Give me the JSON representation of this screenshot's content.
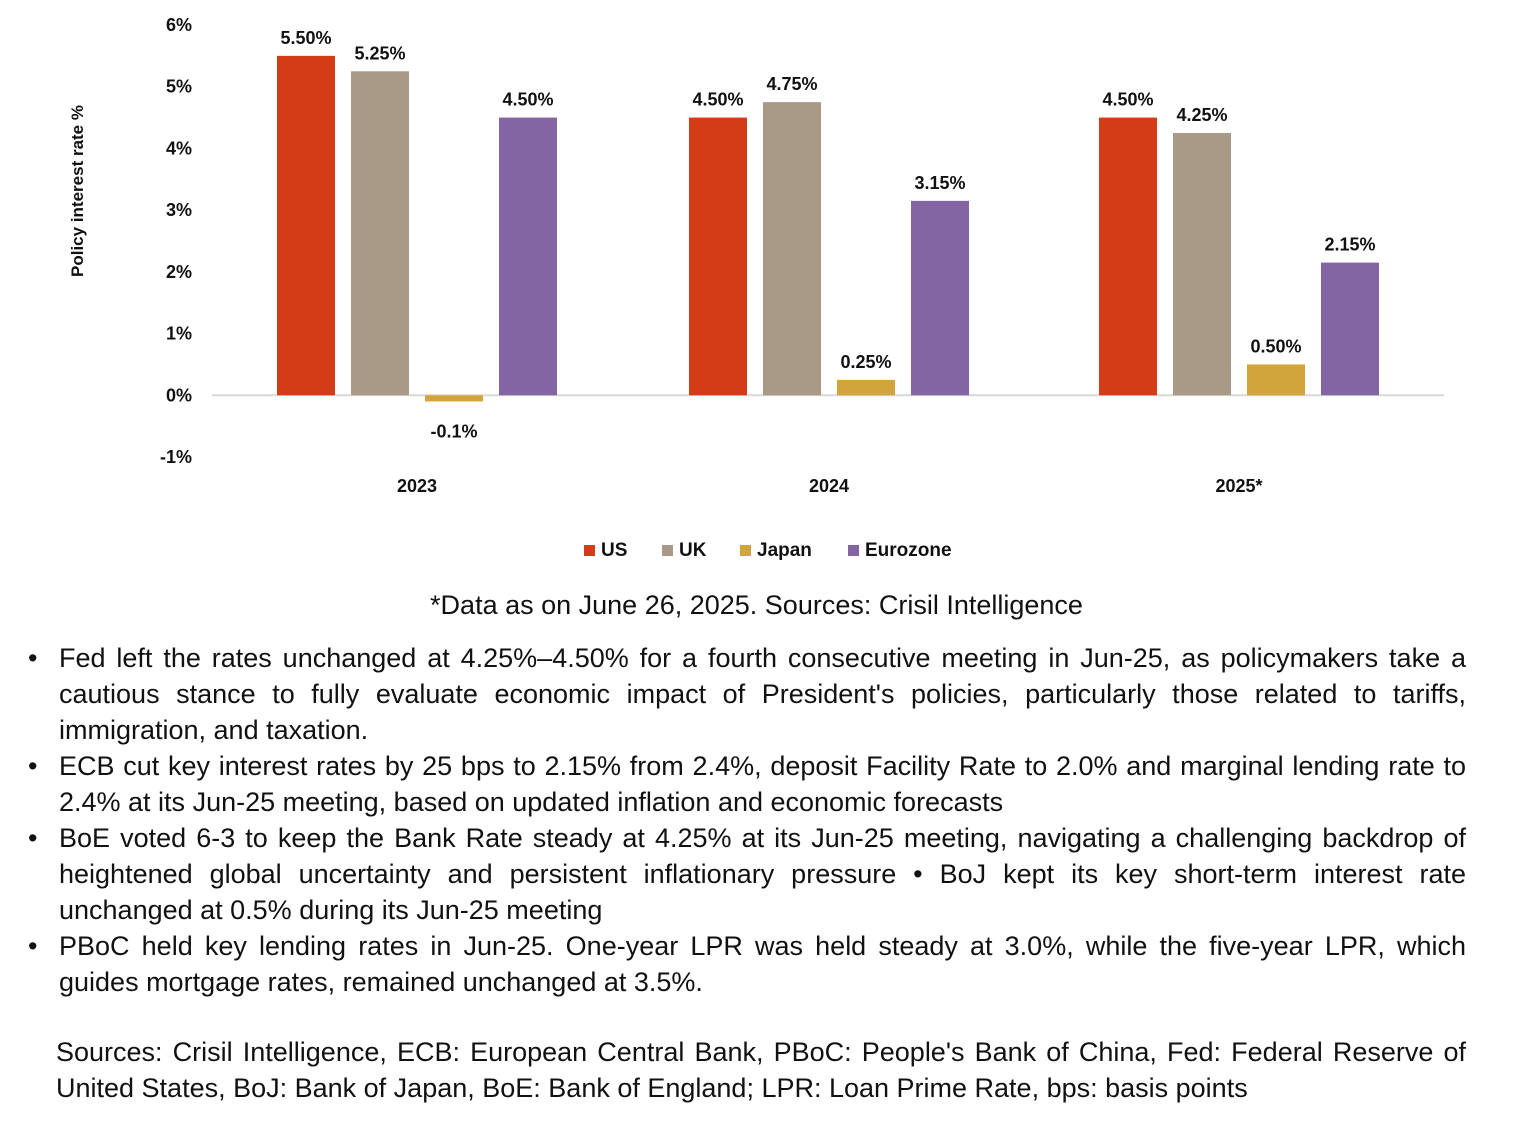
{
  "chart_data": {
    "type": "bar",
    "categories": [
      "2023",
      "2024",
      "2025*"
    ],
    "series": [
      {
        "name": "US",
        "color": "#D43B17",
        "values": [
          5.5,
          4.5,
          4.5
        ],
        "labels": [
          "5.50%",
          "4.50%",
          "4.50%"
        ]
      },
      {
        "name": "UK",
        "color": "#A89A86",
        "values": [
          5.25,
          4.75,
          4.25
        ],
        "labels": [
          "5.25%",
          "4.75%",
          "4.25%"
        ]
      },
      {
        "name": "Japan",
        "color": "#D2A43C",
        "values": [
          -0.1,
          0.25,
          0.5
        ],
        "labels": [
          "-0.1%",
          "0.25%",
          "0.50%"
        ]
      },
      {
        "name": "Eurozone",
        "color": "#8365A3",
        "values": [
          4.5,
          3.15,
          2.15
        ],
        "labels": [
          "4.50%",
          "3.15%",
          "2.15%"
        ]
      }
    ],
    "ylabel": "Policy interest rate %",
    "xlabel": "",
    "ylim": [
      -1,
      6
    ],
    "yticks": [
      6,
      5,
      4,
      3,
      2,
      1,
      0,
      -1
    ],
    "ytick_labels": [
      "6%",
      "5%",
      "4%",
      "3%",
      "2%",
      "1%",
      "0%",
      "-1%"
    ],
    "grid": false,
    "legend_position": "bottom-center"
  },
  "source_line": "*Data as on June 26, 2025. Sources: Crisil Intelligence",
  "notes": [
    "Fed left the rates unchanged at 4.25%–4.50% for a fourth consecutive meeting in Jun-25, as policymakers take a cautious stance to fully evaluate economic impact of President's policies, particularly those related to tariffs, immigration, and taxation.",
    "ECB cut key interest rates by 25 bps to 2.15% from 2.4%, deposit Facility Rate to 2.0% and marginal lending rate to 2.4% at its Jun-25 meeting, based on updated inflation and economic forecasts",
    "BoE voted 6-3 to keep the Bank Rate steady at 4.25% at its Jun-25 meeting, navigating a challenging backdrop of heightened global uncertainty and persistent inflationary pressure • BoJ kept its key short-term interest rate unchanged at 0.5% during its Jun-25 meeting",
    "PBoC held key lending rates in Jun-25. One-year LPR was held steady at 3.0%, while the five-year LPR, which guides mortgage rates, remained unchanged at 3.5%."
  ],
  "bullet_char": "•",
  "footer_sources": "Sources: Crisil Intelligence, ECB: European Central Bank, PBoC: People's Bank of China, Fed: Federal Reserve of United States, BoJ: Bank of Japan, BoE: Bank of England; LPR: Loan Prime Rate, bps: basis points"
}
